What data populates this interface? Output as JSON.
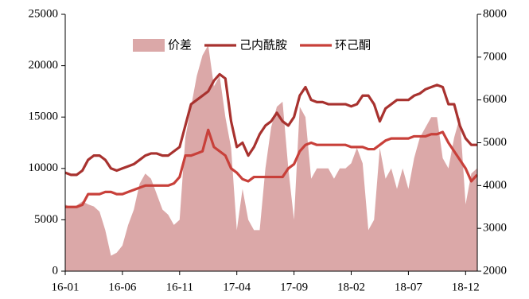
{
  "chart_data": {
    "type": "area-line",
    "categories": [
      "16-01",
      null,
      null,
      null,
      null,
      null,
      null,
      null,
      null,
      null,
      "16-06",
      null,
      null,
      null,
      null,
      null,
      null,
      null,
      null,
      null,
      "16-11",
      null,
      null,
      null,
      null,
      null,
      null,
      null,
      null,
      null,
      "17-04",
      null,
      null,
      null,
      null,
      null,
      null,
      null,
      null,
      null,
      "17-09",
      null,
      null,
      null,
      null,
      null,
      null,
      null,
      null,
      null,
      "18-02",
      null,
      null,
      null,
      null,
      null,
      null,
      null,
      null,
      null,
      "18-07",
      null,
      null,
      null,
      null,
      null,
      null,
      null,
      null,
      null,
      "18-12",
      null,
      null
    ],
    "series": [
      {
        "name": "价差",
        "color": "#dba8a8",
        "kind": "area",
        "axis": "y",
        "values": [
          6500,
          6200,
          6400,
          6800,
          6500,
          6300,
          5800,
          4000,
          1500,
          1800,
          2500,
          4500,
          6000,
          8500,
          9500,
          9000,
          7500,
          6000,
          5500,
          4500,
          5000,
          13000,
          16000,
          19000,
          21000,
          22000,
          18000,
          19000,
          15000,
          12000,
          4000,
          8000,
          5000,
          4000,
          4000,
          10000,
          14000,
          16000,
          16500,
          10000,
          5000,
          16000,
          15000,
          9000,
          10000,
          10000,
          10000,
          9000,
          10000,
          10000,
          10500,
          12000,
          10500,
          4000,
          5000,
          12000,
          9000,
          10000,
          8000,
          10000,
          8000,
          11000,
          13000,
          14000,
          15000,
          15000,
          11000,
          10000,
          13000,
          15000,
          6500,
          9500,
          10000
        ]
      },
      {
        "name": "己内酰胺",
        "color": "#a8322f",
        "kind": "line",
        "axis": "y2",
        "values": [
          4300,
          4250,
          4250,
          4350,
          4600,
          4700,
          4700,
          4600,
          4400,
          4350,
          4400,
          4450,
          4500,
          4600,
          4700,
          4750,
          4750,
          4700,
          4700,
          4800,
          4900,
          5400,
          5900,
          6000,
          6100,
          6200,
          6450,
          6600,
          6500,
          5500,
          4900,
          5000,
          4700,
          4900,
          5200,
          5400,
          5500,
          5700,
          5500,
          5400,
          5600,
          6100,
          6300,
          6000,
          5950,
          5950,
          5900,
          5900,
          5900,
          5900,
          5850,
          5900,
          6100,
          6100,
          5900,
          5500,
          5800,
          5900,
          6000,
          6000,
          6000,
          6100,
          6150,
          6250,
          6300,
          6350,
          6300,
          5900,
          5900,
          5400,
          5100,
          4950,
          4950
        ]
      },
      {
        "name": "环己酮",
        "color": "#c8403a",
        "kind": "line",
        "axis": "y2",
        "values": [
          3500,
          3500,
          3500,
          3550,
          3800,
          3800,
          3800,
          3850,
          3850,
          3800,
          3800,
          3850,
          3900,
          3950,
          4000,
          4000,
          4000,
          4000,
          4000,
          4050,
          4200,
          4700,
          4700,
          4750,
          4800,
          5300,
          4900,
          4800,
          4700,
          4400,
          4300,
          4150,
          4100,
          4200,
          4200,
          4200,
          4200,
          4200,
          4200,
          4400,
          4500,
          4800,
          4950,
          5000,
          4950,
          4950,
          4950,
          4950,
          4950,
          4950,
          4900,
          4900,
          4900,
          4850,
          4850,
          4950,
          5050,
          5100,
          5100,
          5100,
          5100,
          5150,
          5150,
          5150,
          5200,
          5200,
          5250,
          5000,
          4800,
          4600,
          4400,
          4100,
          4250
        ]
      }
    ],
    "ylim": [
      0,
      25000
    ],
    "yticks": [
      0,
      5000,
      10000,
      15000,
      20000,
      25000
    ],
    "y2lim": [
      2000,
      8000
    ],
    "y2ticks": [
      2000,
      3000,
      4000,
      5000,
      6000,
      7000,
      8000
    ],
    "legend": "top"
  }
}
